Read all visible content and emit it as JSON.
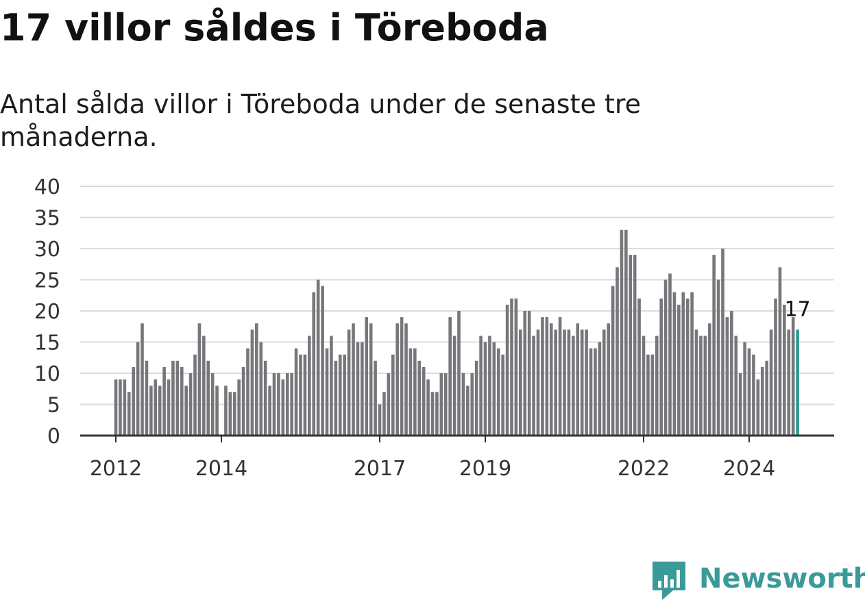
{
  "title": "17 villor såldes i Töreboda",
  "subtitle": "Antal sålda villor i Töreboda under de senaste tre månaderna.",
  "brand": {
    "name": "Newsworthy",
    "color": "#3a9a98"
  },
  "chart_data": {
    "type": "bar",
    "x_start": "2012-01",
    "x_tick_labels": [
      "2012",
      "2014",
      "2017",
      "2019",
      "2022",
      "2024"
    ],
    "y_ticks": [
      0,
      5,
      10,
      15,
      20,
      25,
      30,
      35,
      40
    ],
    "ylim": [
      0,
      40
    ],
    "grid": true,
    "bar_color": "#77767b",
    "highlight_color": "#2a9a93",
    "last_value_label": "17",
    "values": [
      9,
      9,
      9,
      7,
      11,
      15,
      18,
      12,
      8,
      9,
      8,
      11,
      9,
      12,
      12,
      11,
      8,
      10,
      13,
      18,
      16,
      12,
      10,
      8,
      0,
      8,
      7,
      7,
      9,
      11,
      14,
      17,
      18,
      15,
      12,
      8,
      10,
      10,
      9,
      10,
      10,
      14,
      13,
      13,
      16,
      23,
      25,
      24,
      14,
      16,
      12,
      13,
      13,
      17,
      18,
      15,
      15,
      19,
      18,
      12,
      5,
      7,
      10,
      13,
      18,
      19,
      18,
      14,
      14,
      12,
      11,
      9,
      7,
      7,
      10,
      10,
      19,
      16,
      20,
      10,
      8,
      10,
      12,
      16,
      15,
      16,
      15,
      14,
      13,
      21,
      22,
      22,
      17,
      20,
      20,
      16,
      17,
      19,
      19,
      18,
      17,
      19,
      17,
      17,
      16,
      18,
      17,
      17,
      14,
      14,
      15,
      17,
      18,
      24,
      27,
      33,
      33,
      29,
      29,
      22,
      16,
      13,
      13,
      16,
      22,
      25,
      26,
      23,
      21,
      23,
      22,
      23,
      17,
      16,
      16,
      18,
      29,
      25,
      30,
      19,
      20,
      16,
      10,
      15,
      14,
      13,
      9,
      11,
      12,
      17,
      22,
      27,
      21,
      17,
      19,
      17
    ]
  }
}
